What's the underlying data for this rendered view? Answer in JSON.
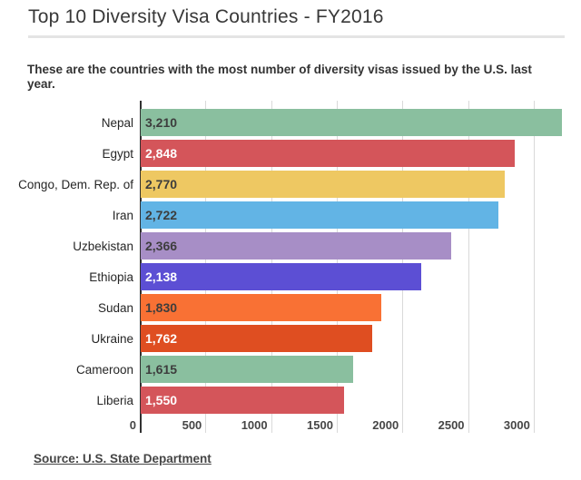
{
  "header": {
    "title": "Top 10 Diversity Visa Countries - FY2016",
    "subtitle": "These are the countries with the most number of diversity visas issued by the U.S. last year."
  },
  "footer": {
    "source": "Source: U.S. State Department"
  },
  "chart_data": {
    "type": "bar",
    "orientation": "horizontal",
    "title": "Top 10 Diversity Visa Countries - FY2016",
    "categories": [
      "Nepal",
      "Egypt",
      "Congo, Dem. Rep. of",
      "Iran",
      "Uzbekistan",
      "Ethiopia",
      "Sudan",
      "Ukraine",
      "Cameroon",
      "Liberia"
    ],
    "values": [
      3210,
      2848,
      2770,
      2722,
      2366,
      2138,
      1830,
      1762,
      1615,
      1550
    ],
    "value_labels": [
      "3,210",
      "2,848",
      "2,770",
      "2,722",
      "2,366",
      "2,138",
      "1,830",
      "1,762",
      "1,615",
      "1,550"
    ],
    "bar_colors": [
      "#8abf9f",
      "#d4555a",
      "#eec862",
      "#62b4e5",
      "#a78ec6",
      "#5c4fd4",
      "#f97134",
      "#df4e21",
      "#8abf9f",
      "#d4555a"
    ],
    "value_text_colors": [
      "#3d3d3d",
      "#ffffff",
      "#3d3d3d",
      "#3d3d3d",
      "#3d3d3d",
      "#ffffff",
      "#3d3d3d",
      "#ffffff",
      "#3d3d3d",
      "#ffffff"
    ],
    "x_ticks": [
      0,
      500,
      1000,
      1500,
      2000,
      2500,
      3000
    ],
    "x_tick_labels": [
      "0",
      "500",
      "1000",
      "1500",
      "2000",
      "2500",
      "3000"
    ],
    "xlim": [
      0,
      3250
    ],
    "xlabel": "",
    "ylabel": "",
    "grid": true,
    "gridline_color": "#d9d9d9",
    "axis_color": "#323232",
    "legend": "none"
  }
}
